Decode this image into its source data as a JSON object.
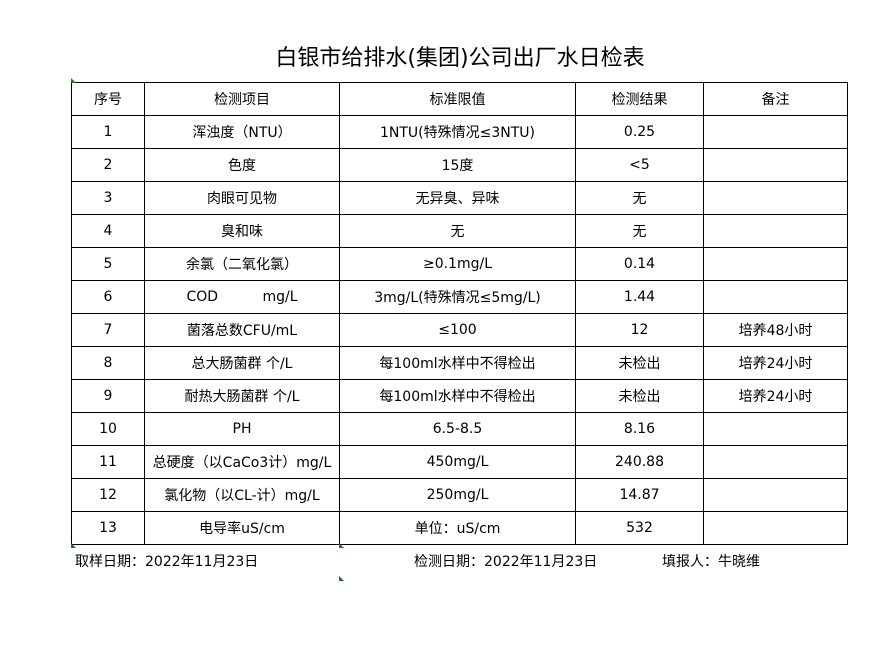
{
  "title": "白银市给排水(集团)公司出厂水日检表",
  "headers": [
    "序号",
    "检测项目",
    "标准限值",
    "检测结果",
    "备注"
  ],
  "rows": [
    [
      "1",
      "浑浊度（NTU）",
      "1NTU(特殊情况≤3NTU)",
      "0.25",
      ""
    ],
    [
      "2",
      "色度",
      "15度",
      "<5",
      ""
    ],
    [
      "3",
      "肉眼可见物",
      "无异臭、异味",
      "无",
      ""
    ],
    [
      "4",
      "臭和味",
      "无",
      "无",
      ""
    ],
    [
      "5",
      "余氯（二氧化氯）",
      "≥0.1mg/L",
      "0.14",
      ""
    ],
    [
      "6",
      "COD          mg/L",
      "3mg/L(特殊情况≤5mg/L)",
      "1.44",
      ""
    ],
    [
      "7",
      "菌落总数CFU/mL",
      "≤100",
      "12",
      "培养48小时"
    ],
    [
      "8",
      "总大肠菌群 个/L",
      "每100ml水样中不得检出",
      "未检出",
      "培养24小时"
    ],
    [
      "9",
      "耐热大肠菌群 个/L",
      "每100ml水样中不得检出",
      "未检出",
      "培养24小时"
    ],
    [
      "10",
      "PH",
      "6.5-8.5",
      "8.16",
      ""
    ],
    [
      "11",
      "总硬度（以CaCo3计）mg/L",
      "450mg/L",
      "240.88",
      ""
    ],
    [
      "12",
      "氯化物（以CL-计）mg/L",
      "250mg/L",
      "14.87",
      ""
    ],
    [
      "13",
      "电导率uS/cm",
      "单位：uS/cm",
      "532",
      ""
    ]
  ],
  "footer": {
    "sampling_date": "取样日期：2022年11月23日",
    "test_date": "检测日期：2022年11月23日",
    "filled_by": "填报人：牛晓维"
  }
}
